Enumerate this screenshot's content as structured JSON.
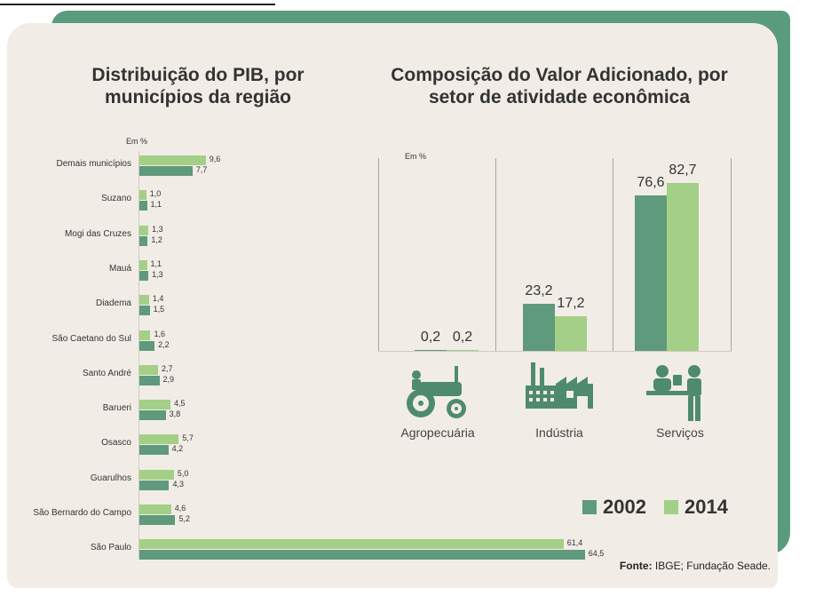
{
  "chart_data": [
    {
      "type": "bar",
      "orientation": "horizontal",
      "title": "Distribuição do PIB, por municípios da região",
      "unit": "Em %",
      "categories": [
        "Demais municípios",
        "Suzano",
        "Mogi das Cruzes",
        "Mauá",
        "Diadema",
        "São Caetano do Sul",
        "Santo André",
        "Barueri",
        "Osasco",
        "Guarulhos",
        "São Bernardo do Campo",
        "São Paulo"
      ],
      "series": [
        {
          "name": "2014",
          "color": "#a4cf86",
          "values": [
            9.6,
            1.0,
            1.3,
            1.1,
            1.4,
            1.6,
            2.7,
            4.5,
            5.7,
            5.0,
            4.6,
            61.4
          ],
          "labels": [
            "9,6",
            "1,0",
            "1,3",
            "1,1",
            "1,4",
            "1,6",
            "2,7",
            "4,5",
            "5,7",
            "5,0",
            "4,6",
            "61,4"
          ]
        },
        {
          "name": "2002",
          "color": "#5e9a7b",
          "values": [
            7.7,
            1.1,
            1.2,
            1.3,
            1.5,
            2.2,
            2.9,
            3.8,
            4.2,
            4.3,
            5.2,
            64.5
          ],
          "labels": [
            "7,7",
            "1,1",
            "1,2",
            "1,3",
            "1,5",
            "2,2",
            "2,9",
            "3,8",
            "4,2",
            "4,3",
            "5,2",
            "64,5"
          ]
        }
      ]
    },
    {
      "type": "bar",
      "title": "Composição do Valor Adicionado, por setor de atividade econômica",
      "unit": "Em %",
      "categories": [
        "Agropecuária",
        "Indústria",
        "Serviços"
      ],
      "ylim": [
        0,
        100
      ],
      "series": [
        {
          "name": "2002",
          "color": "#5e9a7b",
          "values": [
            0.2,
            23.2,
            76.6
          ],
          "labels": [
            "0,2",
            "23,2",
            "76,6"
          ]
        },
        {
          "name": "2014",
          "color": "#a4cf86",
          "values": [
            0.2,
            17.2,
            82.7
          ],
          "labels": [
            "0,2",
            "17,2",
            "82,7"
          ]
        }
      ]
    }
  ],
  "icons": [
    "tractor-icon",
    "factory-icon",
    "services-icon"
  ],
  "legend": {
    "items": [
      {
        "label": "2002",
        "color": "#5e9a7b"
      },
      {
        "label": "2014",
        "color": "#a4cf86"
      }
    ]
  },
  "source": {
    "label": "Fonte:",
    "text": " IBGE; Fundação Seade."
  }
}
